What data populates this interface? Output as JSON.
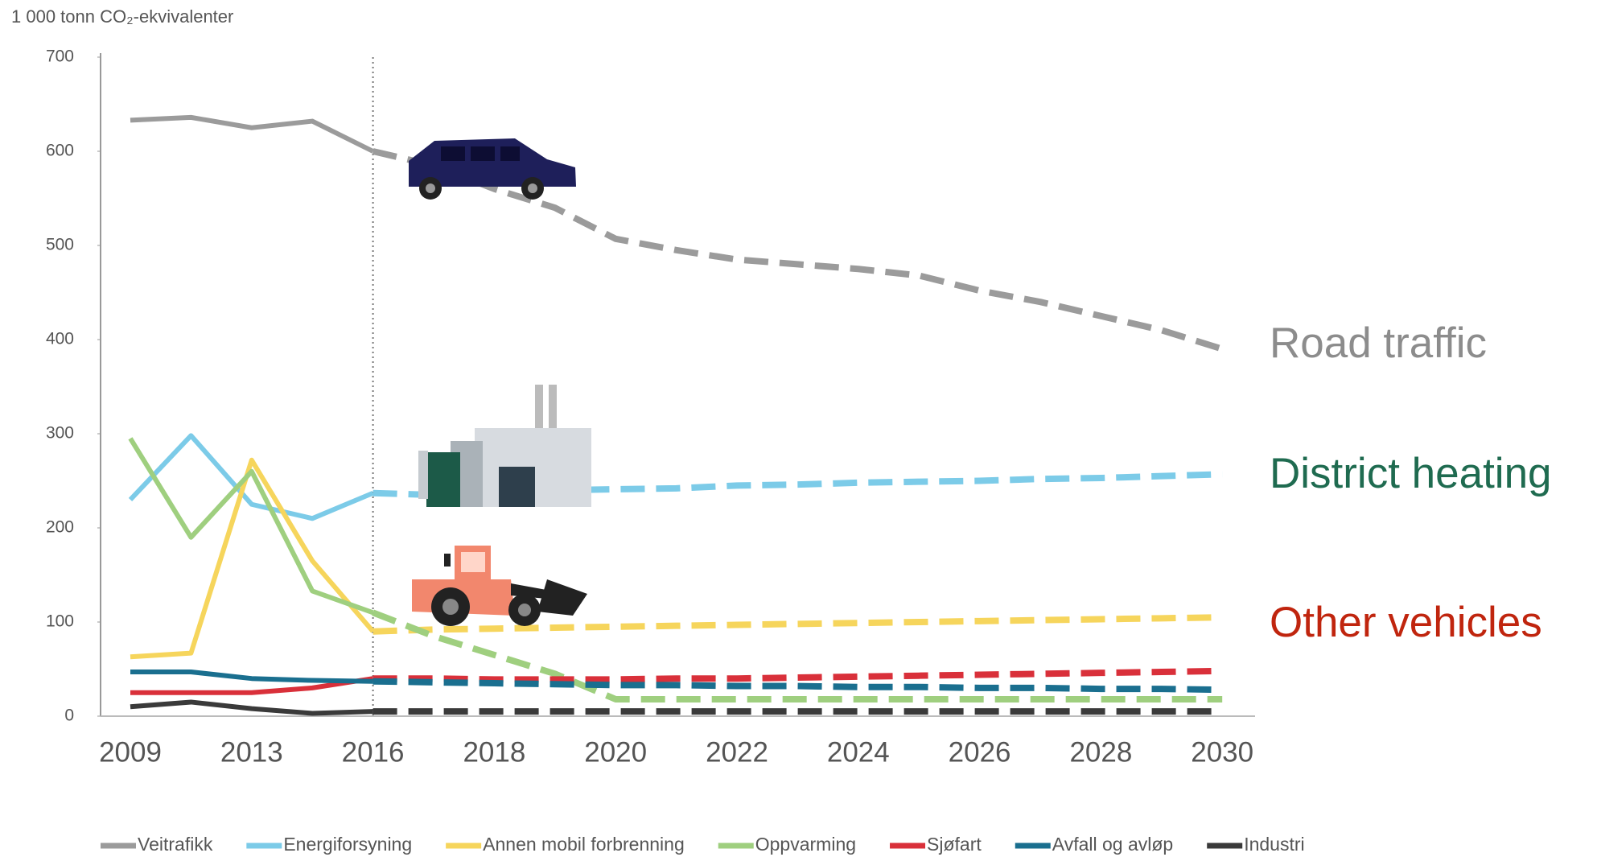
{
  "chart_data": {
    "type": "line",
    "y_label": "1 000 tonn CO₂-ekvivalenter",
    "categories": [
      "2009",
      null,
      "2013",
      null,
      "2016",
      null,
      "2018",
      null,
      "2020",
      null,
      "2022",
      null,
      "2024",
      null,
      "2026",
      null,
      "2028",
      null,
      "2030"
    ],
    "projection_from": "2016",
    "ylim": [
      0,
      700
    ],
    "yticks": [
      0,
      100,
      200,
      300,
      400,
      500,
      600,
      700
    ],
    "series": [
      {
        "name": "Veitrafikk",
        "color": "#9b9b9b",
        "values": [
          633,
          636,
          625,
          632,
          600,
          585,
          560,
          540,
          507,
          495,
          485,
          480,
          475,
          468,
          452,
          440,
          425,
          410,
          390
        ]
      },
      {
        "name": "Energiforsyning",
        "color": "#7ccbe8",
        "values": [
          230,
          298,
          225,
          210,
          237,
          235,
          237,
          240,
          241,
          242,
          245,
          246,
          248,
          249,
          250,
          252,
          253,
          255,
          257
        ]
      },
      {
        "name": "Annen mobil forbrenning",
        "color": "#f6d55c",
        "values": [
          63,
          67,
          272,
          165,
          90,
          92,
          93,
          94,
          95,
          96,
          97,
          98,
          99,
          100,
          101,
          102,
          103,
          104,
          105
        ]
      },
      {
        "name": "Oppvarming",
        "color": "#9fcf7f",
        "values": [
          295,
          190,
          260,
          133,
          110,
          85,
          65,
          45,
          18,
          18,
          18,
          18,
          18,
          18,
          18,
          18,
          18,
          18,
          18
        ]
      },
      {
        "name": "Sjøfart",
        "color": "#d9303a",
        "values": [
          25,
          25,
          25,
          30,
          40,
          40,
          39,
          39,
          39,
          40,
          40,
          41,
          42,
          43,
          44,
          45,
          46,
          47,
          48
        ]
      },
      {
        "name": "Avfall og avløp",
        "color": "#1a6f8f",
        "values": [
          47,
          47,
          40,
          38,
          37,
          36,
          35,
          34,
          33,
          33,
          32,
          32,
          31,
          31,
          30,
          30,
          29,
          29,
          28
        ]
      },
      {
        "name": "Industri",
        "color": "#3a3a3a",
        "values": [
          10,
          15,
          8,
          3,
          5,
          5,
          5,
          5,
          5,
          5,
          5,
          5,
          5,
          5,
          5,
          5,
          5,
          5,
          5
        ]
      }
    ],
    "annotations": [
      {
        "text": "Road traffic",
        "color": "#8c8c8c"
      },
      {
        "text": "District heating",
        "color": "#1f6b50"
      },
      {
        "text": "Other vehicles",
        "color": "#c0250e"
      }
    ]
  }
}
